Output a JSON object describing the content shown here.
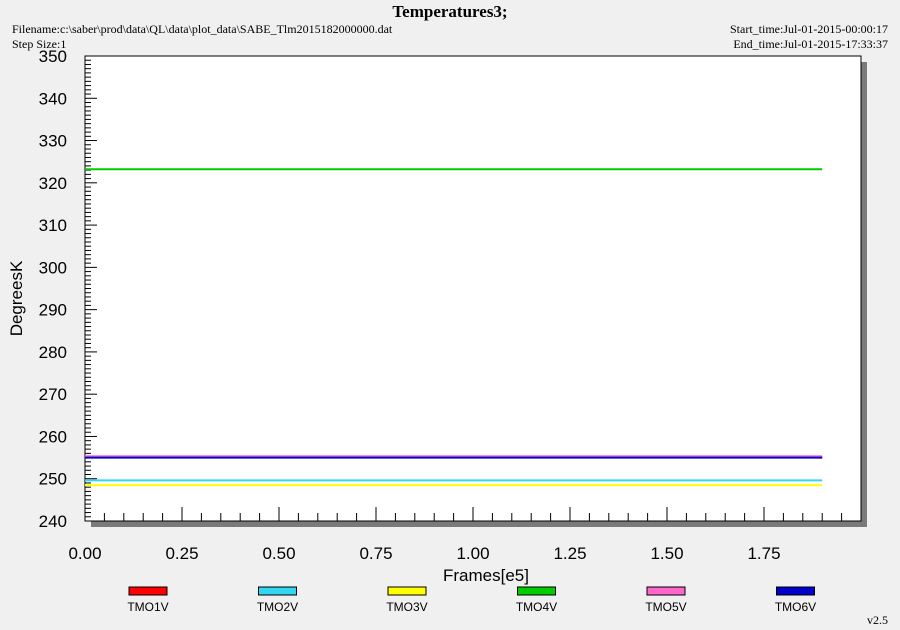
{
  "header": {
    "filename": "Filename:c:\\saber\\prod\\data\\QL\\data\\plot_data\\SABE_Tlm2015182000000.dat",
    "step_size": "Step Size:1",
    "start_time": "Start_time:Jul-01-2015-00:00:17",
    "end_time": "End_time:Jul-01-2015-17:33:37",
    "version": "v2.5"
  },
  "chart_data": {
    "type": "line",
    "title": "Temperatures3;",
    "xlabel": "Frames[e5]",
    "ylabel": "DegreesK",
    "xlim": [
      0,
      2.0
    ],
    "ylim": [
      240,
      350
    ],
    "x_ticks": [
      "0.00",
      "0.25",
      "0.50",
      "0.75",
      "1.00",
      "1.25",
      "1.50",
      "1.75"
    ],
    "x_tick_values": [
      0,
      0.25,
      0.5,
      0.75,
      1.0,
      1.25,
      1.5,
      1.75
    ],
    "y_ticks": [
      "240",
      "250",
      "260",
      "270",
      "280",
      "290",
      "300",
      "310",
      "320",
      "330",
      "340",
      "350"
    ],
    "y_tick_values": [
      240,
      250,
      260,
      270,
      280,
      290,
      300,
      310,
      320,
      330,
      340,
      350
    ],
    "legend_position": "bottom",
    "series": [
      {
        "name": "TMO1V",
        "color": "#ff0000",
        "x": [
          0,
          1.9
        ],
        "values": [
          255.1,
          255.1
        ]
      },
      {
        "name": "TMO2V",
        "color": "#33d6f0",
        "x": [
          0,
          1.9
        ],
        "values": [
          249.6,
          249.6
        ]
      },
      {
        "name": "TMO3V",
        "color": "#ffff00",
        "x": [
          0,
          1.9
        ],
        "values": [
          248.5,
          248.5
        ]
      },
      {
        "name": "TMO4V",
        "color": "#00cc00",
        "x": [
          0,
          1.9
        ],
        "values": [
          323.2,
          323.2
        ]
      },
      {
        "name": "TMO5V",
        "color": "#ff66cc",
        "x": [
          0,
          1.9
        ],
        "values": [
          255.3,
          255.3
        ]
      },
      {
        "name": "TMO6V",
        "color": "#0000cc",
        "x": [
          0,
          1.9
        ],
        "values": [
          255.0,
          255.0
        ]
      }
    ]
  }
}
